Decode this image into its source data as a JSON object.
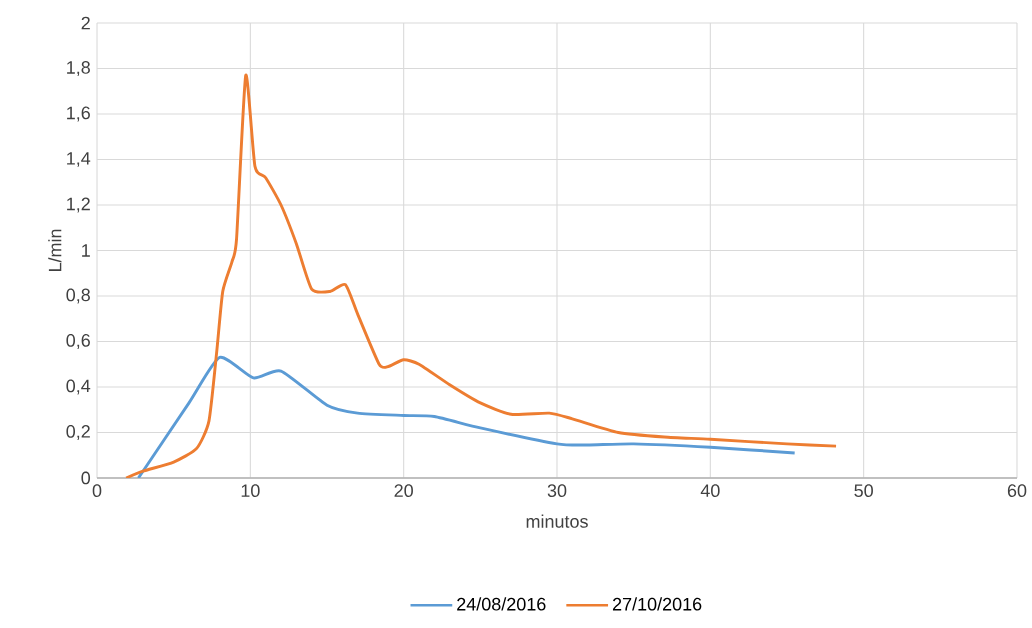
{
  "chart_data": {
    "type": "line",
    "xlabel": "minutos",
    "ylabel": "L/min",
    "xlim": [
      0,
      60
    ],
    "xticks": [
      0,
      10,
      20,
      30,
      40,
      50,
      60
    ],
    "ylim": [
      0,
      2
    ],
    "yticks": [
      0,
      {
        "value": 0.2,
        "label": "0,2"
      },
      {
        "value": 0.4,
        "label": "0,4"
      },
      {
        "value": 0.6,
        "label": "0,6"
      },
      {
        "value": 0.8,
        "label": "0,8"
      },
      1,
      {
        "value": 1.2,
        "label": "1,2"
      },
      {
        "value": 1.4,
        "label": "1,4"
      },
      {
        "value": 1.6,
        "label": "1,6"
      },
      {
        "value": 1.8,
        "label": "1,8"
      },
      2
    ],
    "grid": true,
    "legend": "bottom",
    "marker": "none",
    "line_style": "solid",
    "series": [
      {
        "name": "24/08/2016",
        "color": "#5b9bd5",
        "x": [
          2.7,
          6,
          8,
          10.2,
          12,
          15,
          17,
          20,
          22,
          25,
          30,
          32,
          35,
          40,
          45.5
        ],
        "values": [
          0,
          0.33,
          0.53,
          0.44,
          0.47,
          0.32,
          0.285,
          0.275,
          0.27,
          0.22,
          0.15,
          0.145,
          0.15,
          0.135,
          0.11
        ]
      },
      {
        "name": "27/10/2016",
        "color": "#ed7d31",
        "x": [
          1.9,
          3,
          5,
          6.5,
          7.3,
          7.8,
          8.2,
          8.8,
          9.1,
          9.7,
          10.3,
          11,
          12,
          13,
          14,
          15.2,
          16.2,
          17,
          18.4,
          19,
          20,
          21,
          23,
          25,
          27,
          29.5,
          31,
          34,
          37,
          40,
          45,
          48.2
        ],
        "values": [
          0,
          0.03,
          0.07,
          0.13,
          0.25,
          0.55,
          0.82,
          0.95,
          1.05,
          1.77,
          1.37,
          1.32,
          1.2,
          1.03,
          0.83,
          0.82,
          0.85,
          0.72,
          0.5,
          0.49,
          0.52,
          0.5,
          0.41,
          0.33,
          0.28,
          0.285,
          0.26,
          0.2,
          0.18,
          0.17,
          0.15,
          0.14
        ]
      }
    ]
  }
}
